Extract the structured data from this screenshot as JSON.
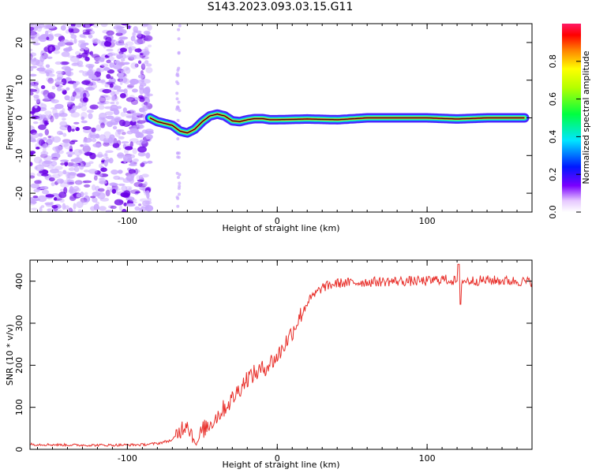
{
  "title": "S143.2023.093.03.15.G11",
  "colors": {
    "snr_line": "#e8302b",
    "track_core": "#e8302b",
    "track_mid": "#00e0e0",
    "track_outer": "#2a00ff",
    "noise_strong": "#6a00e6",
    "noise_weak": "#c9a8ff"
  },
  "colorbar": {
    "label": "Normalized spectral amplitude",
    "ticks": [
      "0.0",
      "0.2",
      "0.4",
      "0.6",
      "0.8"
    ],
    "colormap": "hsv_reverse_white_low"
  },
  "chart_data": [
    {
      "type": "heatmap",
      "xlabel": "Height of straight line (km)",
      "ylabel": "Frequency (Hz)",
      "xlim": [
        -165,
        170
      ],
      "ylim": [
        -25,
        25
      ],
      "x_ticks": [
        "-100",
        "0",
        "100"
      ],
      "y_ticks": [
        "-20",
        "-10",
        "0",
        "10",
        "20"
      ],
      "zlabel": "Normalized spectral amplitude",
      "zlim": [
        0,
        1
      ],
      "noise_region_x": [
        -165,
        -85
      ],
      "trace": {
        "name": "",
        "x": [
          -85,
          -80,
          -75,
          -70,
          -65,
          -60,
          -55,
          -50,
          -45,
          -40,
          -35,
          -30,
          -25,
          -20,
          -15,
          -10,
          -5,
          0,
          20,
          40,
          60,
          80,
          100,
          120,
          140,
          165
        ],
        "y": [
          0,
          -1,
          -1.5,
          -2,
          -3.5,
          -4,
          -3,
          -1,
          0.5,
          1,
          0.5,
          -0.8,
          -1,
          -0.5,
          -0.2,
          -0.2,
          -0.5,
          -0.5,
          -0.3,
          -0.5,
          0,
          0,
          0,
          -0.3,
          0,
          0
        ]
      }
    },
    {
      "type": "line",
      "xlabel": "Height of straight line (km)",
      "ylabel": "SNR (10 * v/v)",
      "xlim": [
        -165,
        170
      ],
      "ylim": [
        0,
        450
      ],
      "x_ticks": [
        "-100",
        "0",
        "100"
      ],
      "y_ticks": [
        "0",
        "100",
        "200",
        "300",
        "400"
      ],
      "series": [
        {
          "name": "",
          "x": [
            -165,
            -150,
            -130,
            -110,
            -90,
            -80,
            -70,
            -65,
            -60,
            -57,
            -54,
            -50,
            -45,
            -40,
            -30,
            -20,
            -10,
            0,
            10,
            20,
            30,
            40,
            60,
            80,
            100,
            110,
            120,
            140,
            160,
            170
          ],
          "y": [
            12,
            11,
            10,
            10,
            11,
            14,
            22,
            45,
            65,
            35,
            10,
            45,
            60,
            80,
            120,
            170,
            190,
            220,
            280,
            350,
            385,
            395,
            398,
            400,
            400,
            405,
            400,
            402,
            400,
            398
          ]
        }
      ]
    }
  ]
}
